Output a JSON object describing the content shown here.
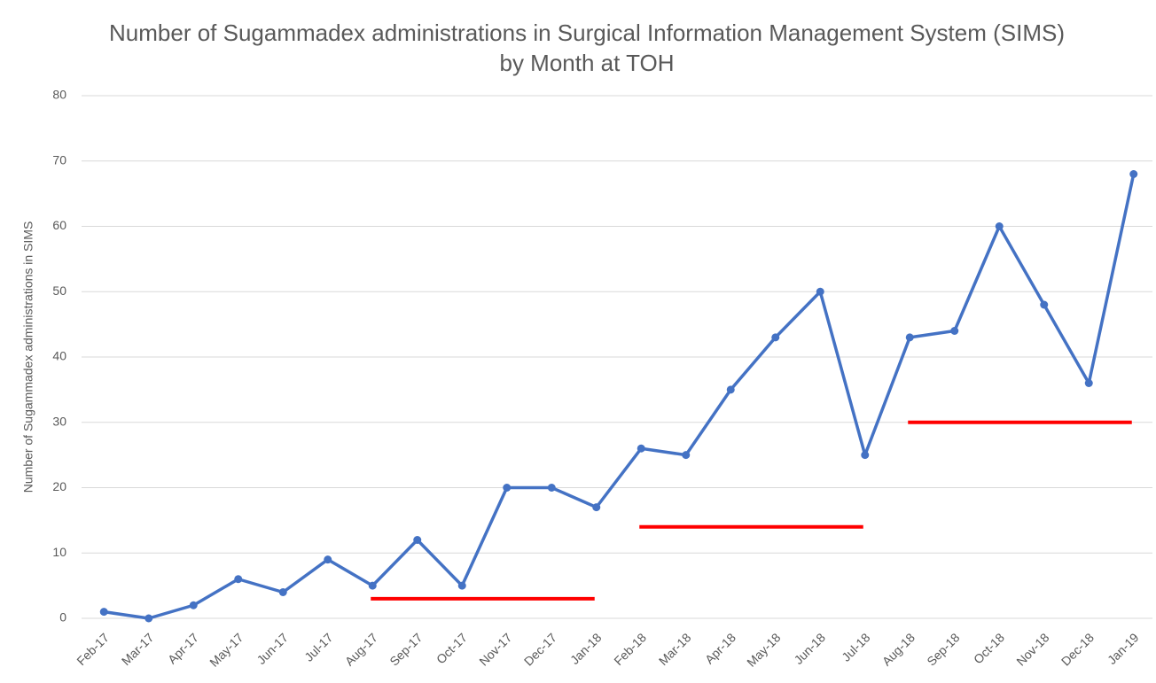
{
  "chart_data": {
    "type": "line",
    "title": "Number of Sugammadex administrations in Surgical Information Management System (SIMS) by Month at TOH",
    "y_label": "Number of Sugammadex administrations in SIMS",
    "categories": [
      "Feb-17",
      "Mar-17",
      "Apr-17",
      "May-17",
      "Jun-17",
      "Jul-17",
      "Aug-17",
      "Sep-17",
      "Oct-17",
      "Nov-17",
      "Dec-17",
      "Jan-18",
      "Feb-18",
      "Mar-18",
      "Apr-18",
      "May-18",
      "Jun-18",
      "Jul-18",
      "Aug-18",
      "Sep-18",
      "Oct-18",
      "Nov-18",
      "Dec-18",
      "Jan-19"
    ],
    "series": [
      {
        "color": "#4472c4",
        "values": [
          1,
          0,
          2,
          6,
          4,
          9,
          5,
          12,
          5,
          20,
          20,
          17,
          26,
          25,
          35,
          43,
          50,
          25,
          43,
          44,
          60,
          48,
          36,
          68
        ]
      }
    ],
    "reference_lines": [
      {
        "start": "Aug-17",
        "end": "Jan-18",
        "value": 3,
        "color": "#ff0000"
      },
      {
        "start": "Feb-18",
        "end": "Jul-18",
        "value": 14,
        "color": "#ff0000"
      },
      {
        "start": "Aug-18",
        "end": "Jan-19",
        "value": 30,
        "color": "#ff0000"
      }
    ],
    "ylim": [
      0,
      80
    ],
    "yticks": [
      0,
      10,
      20,
      30,
      40,
      50,
      60,
      70,
      80
    ],
    "grid": true
  }
}
